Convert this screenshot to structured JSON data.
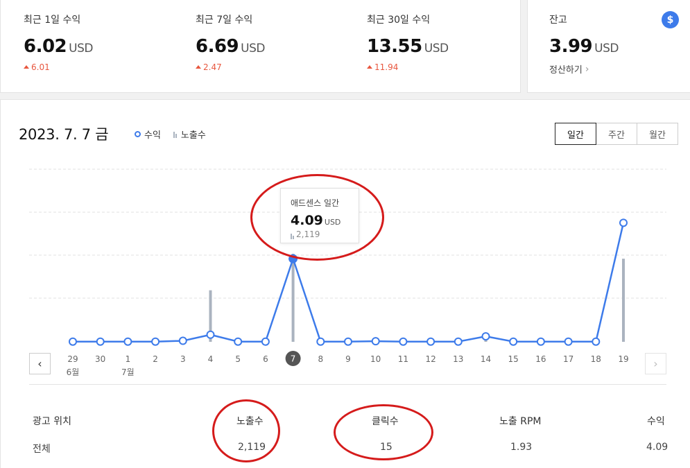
{
  "summary": [
    {
      "label": "최근 1일 수익",
      "value": "6.02",
      "unit": "USD",
      "delta": "6.01"
    },
    {
      "label": "최근 7일 수익",
      "value": "6.69",
      "unit": "USD",
      "delta": "2.47"
    },
    {
      "label": "최근 30일 수익",
      "value": "13.55",
      "unit": "USD",
      "delta": "11.94"
    }
  ],
  "balance": {
    "label": "잔고",
    "value": "3.99",
    "unit": "USD",
    "link": "정산하기",
    "icon": "dollar-icon",
    "icon_glyph": "$"
  },
  "main": {
    "date_title": "2023. 7. 7 금",
    "legend": {
      "revenue": "수익",
      "impressions": "노출수"
    },
    "toggle": {
      "daily": "일간",
      "weekly": "주간",
      "monthly": "월간",
      "selected": "daily"
    }
  },
  "tooltip": {
    "label": "애드센스 일간",
    "value": "4.09",
    "unit": "USD",
    "impressions": "2,119"
  },
  "chart_data": {
    "type": "line",
    "x": [
      "29",
      "30",
      "1",
      "2",
      "3",
      "4",
      "5",
      "6",
      "7",
      "8",
      "9",
      "10",
      "11",
      "12",
      "13",
      "14",
      "15",
      "16",
      "17",
      "18",
      "19"
    ],
    "month_labels": [
      {
        "index": 0,
        "label": "6월"
      },
      {
        "index": 2,
        "label": "7월"
      }
    ],
    "selected_index": 8,
    "series": [
      {
        "name": "수익",
        "type": "line",
        "values": [
          0.01,
          0.01,
          0.01,
          0.01,
          0.05,
          0.35,
          0.01,
          0.01,
          4.09,
          0.01,
          0.01,
          0.03,
          0.01,
          0.01,
          0.01,
          0.27,
          0.01,
          0.01,
          0.01,
          0.01,
          5.86
        ]
      },
      {
        "name": "노출수",
        "type": "bar",
        "values": [
          80,
          10,
          10,
          60,
          10,
          1240,
          10,
          10,
          2119,
          10,
          10,
          10,
          60,
          10,
          10,
          60,
          30,
          10,
          10,
          60,
          2000
        ]
      }
    ],
    "ylim": [
      0,
      8.5
    ],
    "grid": true
  },
  "table": {
    "headers": {
      "position": "광고 위치",
      "impressions": "노출수",
      "clicks": "클릭수",
      "rpm": "노출 RPM",
      "revenue": "수익"
    },
    "rows": [
      {
        "position": "전체",
        "impressions": "2,119",
        "clicks": "15",
        "rpm": "1.93",
        "revenue": "4.09"
      }
    ]
  },
  "colors": {
    "accent": "#3d7bea",
    "bar": "#aab3bf",
    "delta_up": "#e8573f",
    "annotation": "#d51b1b"
  }
}
